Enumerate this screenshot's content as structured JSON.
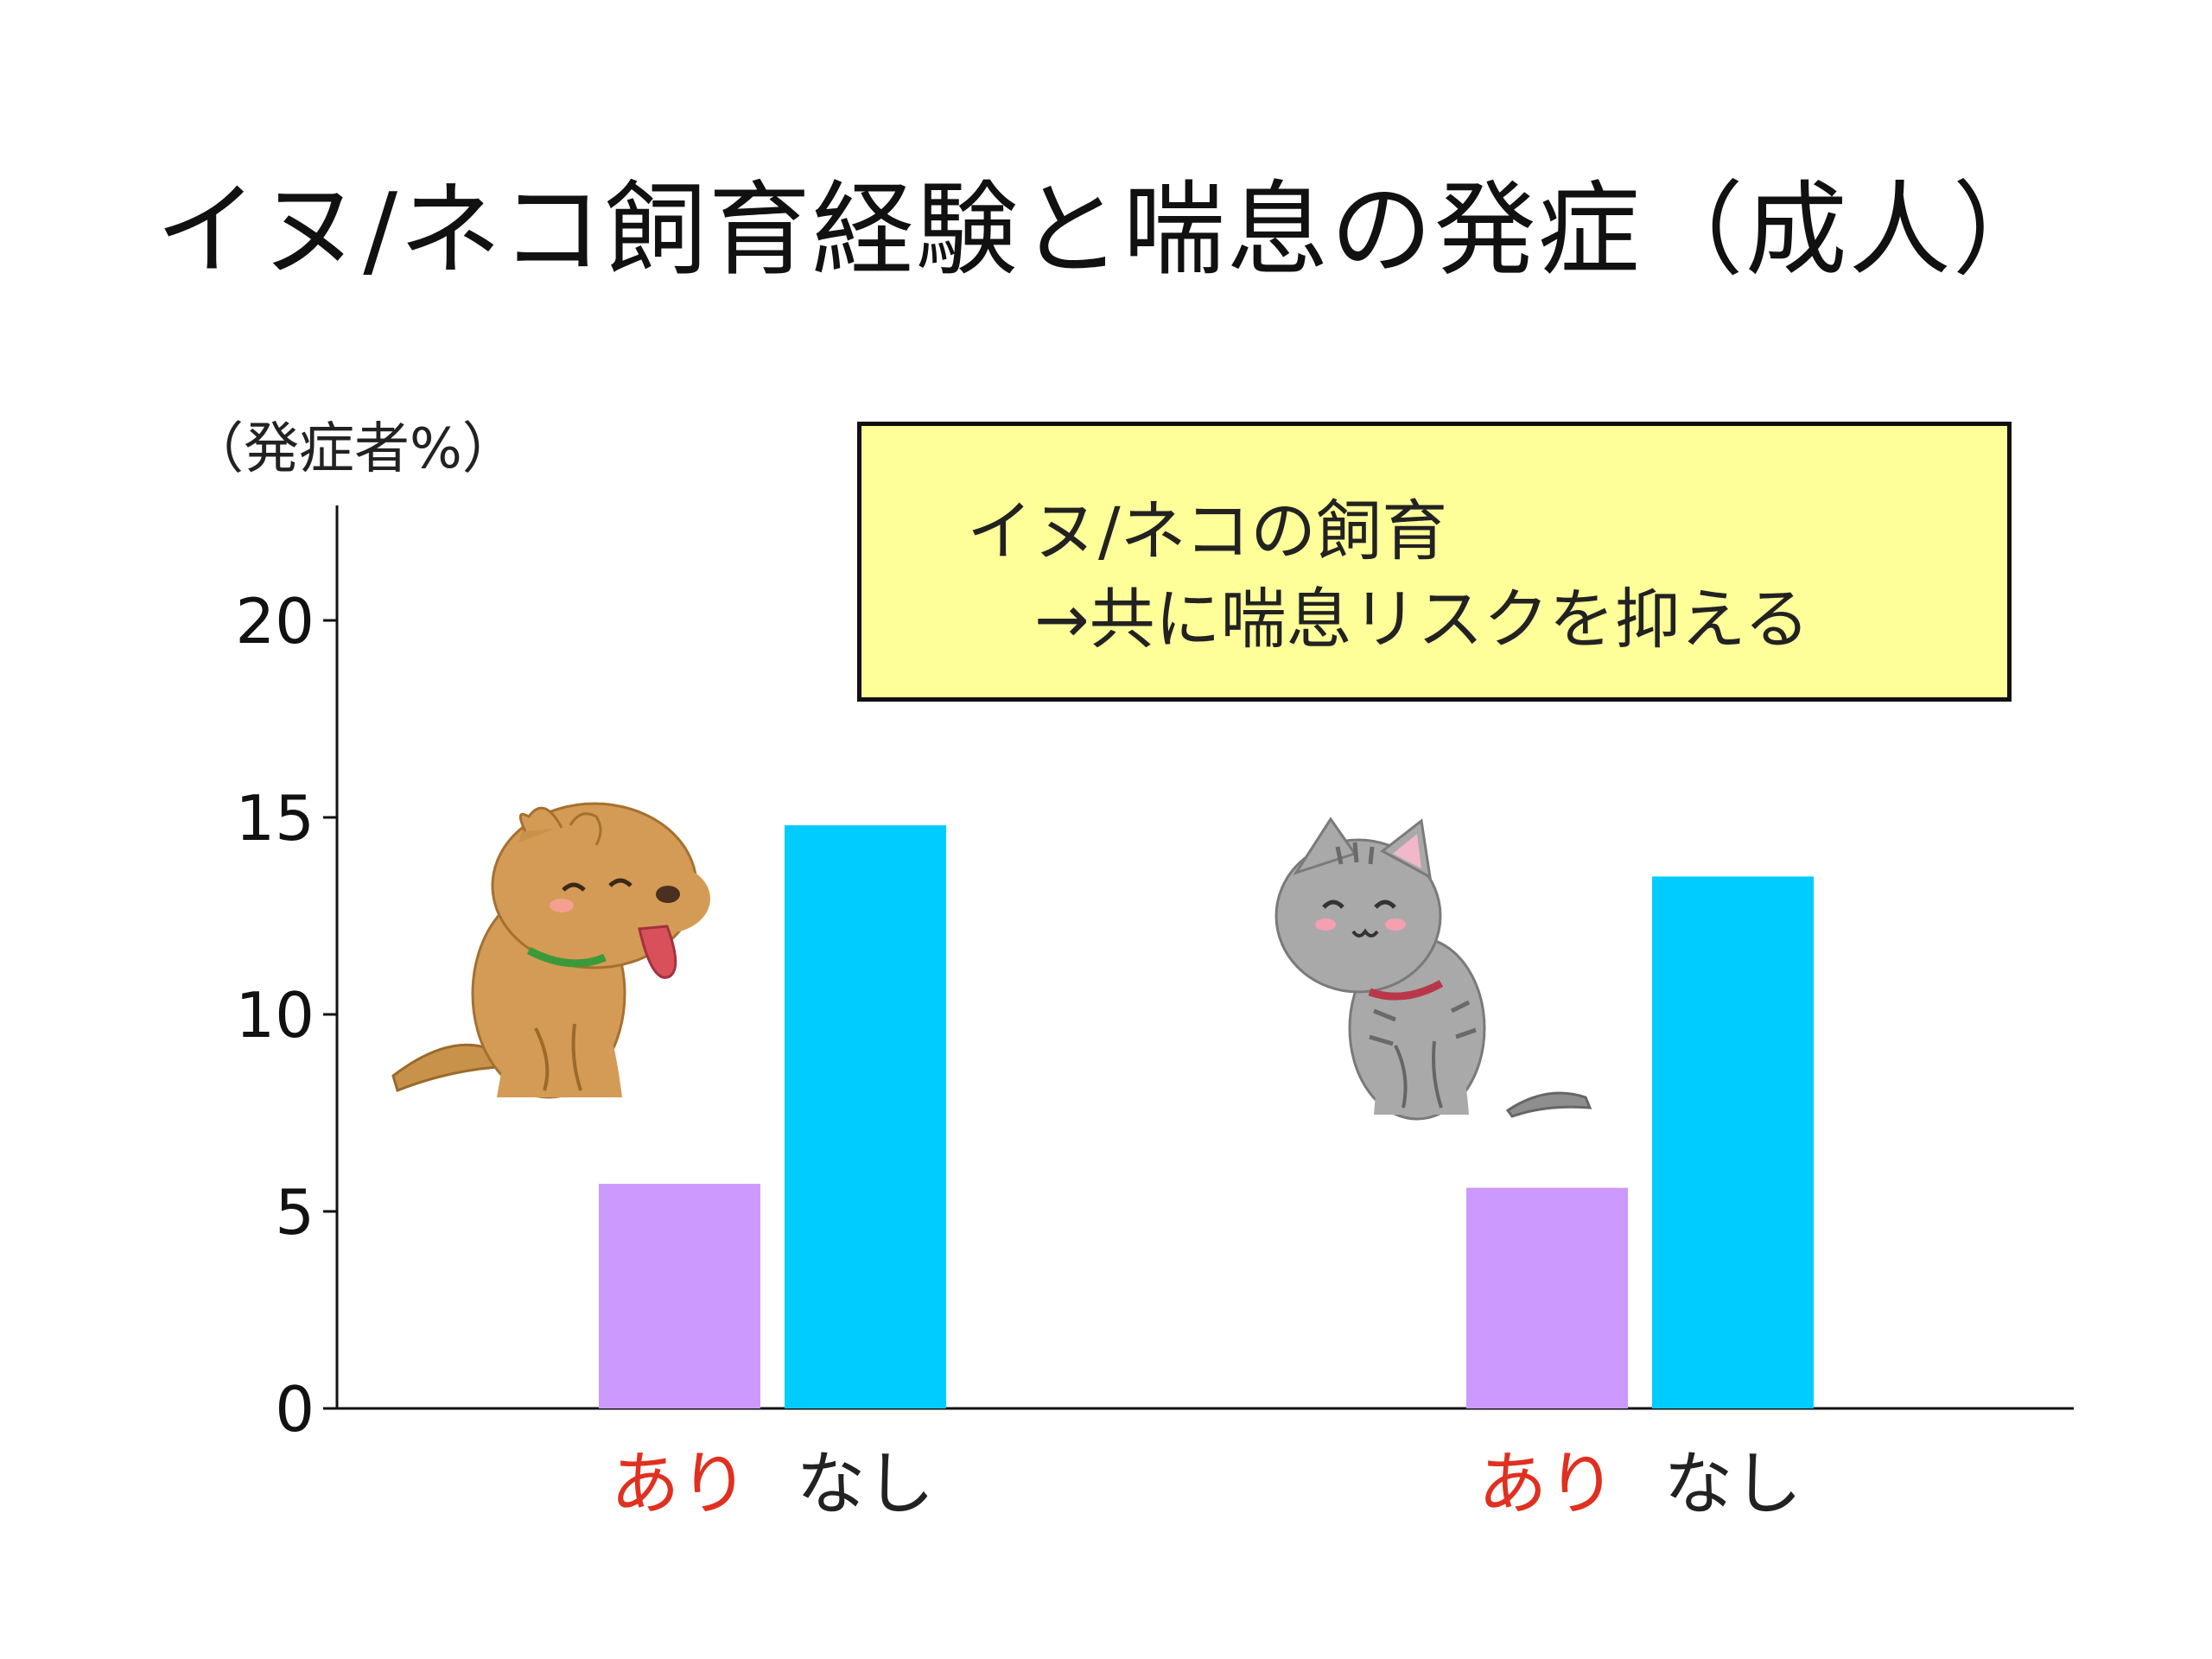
{
  "title": "イヌ/ネコ飼育経験と喘息の発症（成人）",
  "callout": {
    "line1": "イヌ/ネコの飼育",
    "line2": "→共に喘息リスクを抑える"
  },
  "chart_data": {
    "type": "bar",
    "ylabel": "（発症者%）",
    "ylim": [
      0,
      23
    ],
    "yticks": [
      "0",
      "5",
      "10",
      "15",
      "20"
    ],
    "groups": [
      {
        "name": "dog",
        "icon": "dog-icon",
        "bars": [
          {
            "label": "あり",
            "value": 5.7,
            "color": "#cc99ff",
            "label_color": "#e03020"
          },
          {
            "label": "なし",
            "value": 14.8,
            "color": "#00ccff",
            "label_color": "#222222"
          }
        ]
      },
      {
        "name": "cat",
        "icon": "cat-icon",
        "bars": [
          {
            "label": "あり",
            "value": 5.6,
            "color": "#cc99ff",
            "label_color": "#e03020"
          },
          {
            "label": "なし",
            "value": 13.5,
            "color": "#00ccff",
            "label_color": "#222222"
          }
        ]
      }
    ]
  }
}
